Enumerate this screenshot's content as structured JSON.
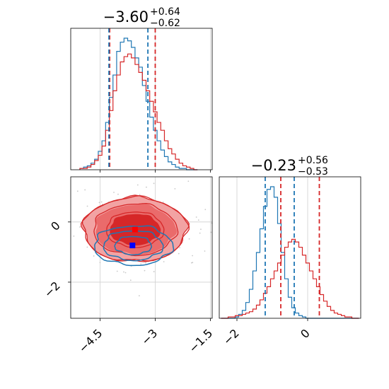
{
  "colors": {
    "red": "#d62728",
    "blue": "#1f77b4",
    "red_light": "#f2a3a3",
    "red_mid": "#ea6b6b",
    "grid": "#d0d0d0"
  },
  "chart_data": [
    {
      "type": "histogram",
      "panel": "top-left marginal (parameter 1)",
      "title_main": "−3.60",
      "title_sup": "+0.64",
      "title_sub": "−0.62",
      "xlim": [
        -5.3,
        -1.45
      ],
      "x_ticks": [
        -4.5,
        -3.0,
        -1.5
      ],
      "grid": true,
      "bins_x": [
        -5.0,
        -4.9,
        -4.8,
        -4.7,
        -4.6,
        -4.5,
        -4.4,
        -4.3,
        -4.2,
        -4.1,
        -4.0,
        -3.9,
        -3.8,
        -3.7,
        -3.6,
        -3.5,
        -3.4,
        -3.3,
        -3.2,
        -3.1,
        -3.0,
        -2.9,
        -2.8,
        -2.7,
        -2.6,
        -2.5,
        -2.4,
        -2.3,
        -2.2,
        -2.1,
        -2.0,
        -1.9
      ],
      "series": [
        {
          "color": "blue",
          "density": [
            0.01,
            0.02,
            0.03,
            0.05,
            0.08,
            0.14,
            0.22,
            0.36,
            0.55,
            0.72,
            0.9,
            0.97,
            1.0,
            0.98,
            0.93,
            0.85,
            0.78,
            0.64,
            0.52,
            0.4,
            0.3,
            0.22,
            0.15,
            0.1,
            0.06,
            0.04,
            0.02,
            0.01,
            0.01,
            0.0,
            0.0,
            0.0
          ]
        },
        {
          "color": "red",
          "density": [
            0.01,
            0.01,
            0.02,
            0.04,
            0.07,
            0.11,
            0.18,
            0.3,
            0.45,
            0.6,
            0.72,
            0.82,
            0.86,
            0.88,
            0.85,
            0.8,
            0.74,
            0.68,
            0.6,
            0.52,
            0.44,
            0.36,
            0.3,
            0.22,
            0.16,
            0.12,
            0.08,
            0.05,
            0.03,
            0.02,
            0.01,
            0.0
          ]
        }
      ],
      "quantile_lines": {
        "red": [
          -4.24,
          -3.0
        ],
        "blue": [
          -4.26,
          -3.2
        ]
      }
    },
    {
      "type": "histogram",
      "panel": "bottom-right marginal (parameter 2)",
      "title_main": "−0.23",
      "title_sup": "+0.56",
      "title_sub": "−0.53",
      "xlim": [
        -2.5,
        1.5
      ],
      "x_ticks": [
        -2,
        0
      ],
      "grid": true,
      "bins_x": [
        -2.4,
        -2.3,
        -2.2,
        -2.1,
        -2.0,
        -1.9,
        -1.8,
        -1.7,
        -1.6,
        -1.5,
        -1.4,
        -1.3,
        -1.2,
        -1.1,
        -1.0,
        -0.9,
        -0.8,
        -0.7,
        -0.6,
        -0.5,
        -0.4,
        -0.3,
        -0.2,
        -0.1,
        0.0,
        0.1,
        0.2,
        0.3,
        0.4,
        0.5,
        0.6,
        0.7,
        0.8,
        0.9,
        1.0,
        1.1,
        1.2,
        1.3,
        1.4
      ],
      "series": [
        {
          "color": "blue",
          "density": [
            0.0,
            0.0,
            0.0,
            0.0,
            0.01,
            0.03,
            0.06,
            0.12,
            0.22,
            0.36,
            0.5,
            0.68,
            0.85,
            0.98,
            1.0,
            0.92,
            0.72,
            0.5,
            0.3,
            0.16,
            0.08,
            0.04,
            0.02,
            0.01,
            0.0,
            0.0,
            0.0,
            0.0,
            0.0,
            0.0,
            0.0,
            0.0,
            0.0,
            0.0,
            0.0,
            0.0,
            0.0,
            0.0,
            0.0
          ]
        },
        {
          "color": "red",
          "density": [
            0.0,
            0.0,
            0.01,
            0.01,
            0.02,
            0.02,
            0.03,
            0.04,
            0.05,
            0.07,
            0.1,
            0.14,
            0.19,
            0.24,
            0.3,
            0.36,
            0.42,
            0.48,
            0.54,
            0.58,
            0.6,
            0.58,
            0.54,
            0.48,
            0.42,
            0.36,
            0.3,
            0.24,
            0.18,
            0.13,
            0.09,
            0.06,
            0.04,
            0.03,
            0.02,
            0.01,
            0.01,
            0.0,
            0.0
          ]
        }
      ],
      "quantile_lines": {
        "red": [
          -0.76,
          0.33
        ],
        "blue": [
          -1.2,
          -0.38
        ]
      }
    },
    {
      "type": "contour",
      "panel": "bottom-left joint (parameter 1 vs parameter 2)",
      "xlim": [
        -5.3,
        -1.45
      ],
      "ylim": [
        -3.2,
        1.5
      ],
      "x_ticks": [
        -4.5,
        -3.0,
        -1.5
      ],
      "y_ticks": [
        0,
        -2
      ],
      "grid": true,
      "series": [
        {
          "color": "red",
          "center": [
            -3.55,
            -0.25
          ],
          "spread": [
            0.82,
            0.62
          ],
          "filled_levels": 3
        },
        {
          "color": "blue",
          "center": [
            -3.6,
            -0.78
          ],
          "spread": [
            0.62,
            0.38
          ],
          "filled_levels": 0
        }
      ],
      "markers": [
        {
          "color": "red",
          "x": -3.55,
          "y": -0.25
        },
        {
          "color": "blue",
          "x": -3.62,
          "y": -0.78
        }
      ]
    }
  ]
}
